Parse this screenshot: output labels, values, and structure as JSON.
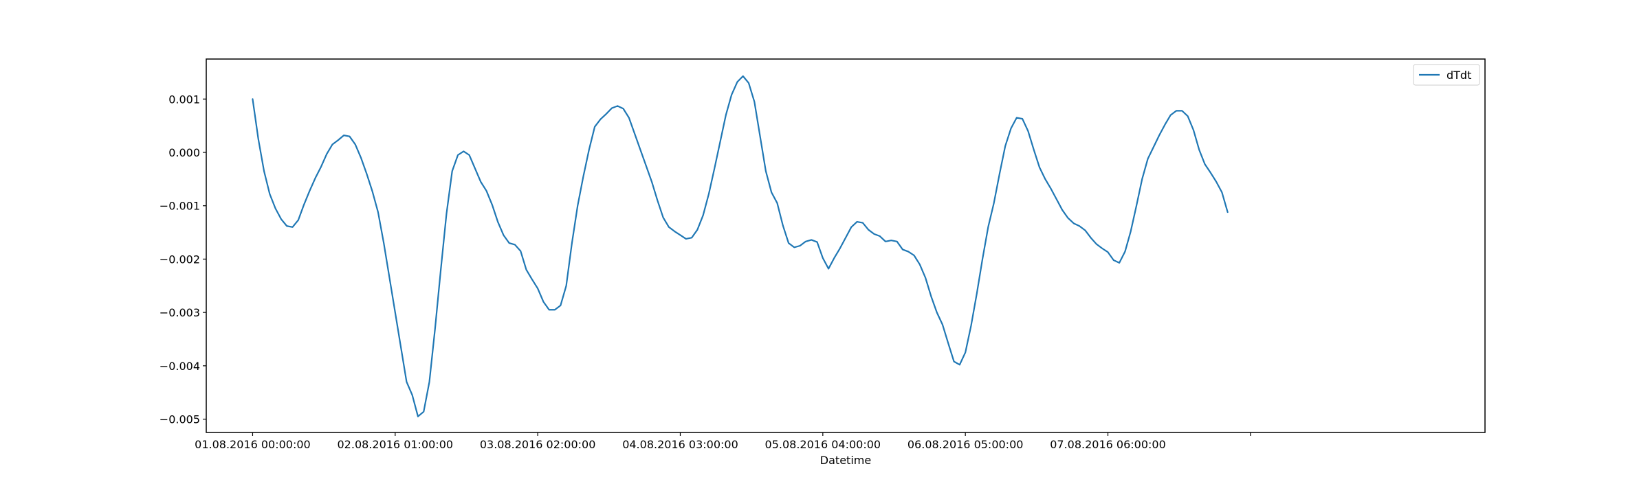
{
  "chart_data": {
    "type": "line",
    "xlabel": "Datetime",
    "ylabel": "",
    "ylim": [
      -0.00525,
      0.00175
    ],
    "xlim": [
      -8.133,
      216.133
    ],
    "grid": false,
    "legend_position": "top-right",
    "x_unit": "hours",
    "x_ticks": [
      {
        "value": 0,
        "label": "01.08.2016 00:00:00"
      },
      {
        "value": 25,
        "label": "02.08.2016 01:00:00"
      },
      {
        "value": 50,
        "label": "03.08.2016 02:00:00"
      },
      {
        "value": 75,
        "label": "04.08.2016 03:00:00"
      },
      {
        "value": 100,
        "label": "05.08.2016 04:00:00"
      },
      {
        "value": 125,
        "label": "06.08.2016 05:00:00"
      },
      {
        "value": 150,
        "label": "07.08.2016 06:00:00"
      },
      {
        "value": 175,
        "label": ""
      }
    ],
    "y_ticks": [
      {
        "value": 0.001,
        "label": "0.001"
      },
      {
        "value": 0.0,
        "label": "0.000"
      },
      {
        "value": -0.001,
        "label": "−0.001"
      },
      {
        "value": -0.002,
        "label": "−0.002"
      },
      {
        "value": -0.003,
        "label": "−0.003"
      },
      {
        "value": -0.004,
        "label": "−0.004"
      },
      {
        "value": -0.005,
        "label": "−0.005"
      }
    ],
    "series": [
      {
        "name": "dTdt",
        "color": "#1f77b4",
        "points": [
          [
            0,
            0.001
          ],
          [
            1,
            0.00025
          ],
          [
            2,
            -0.00035
          ],
          [
            3,
            -0.00078
          ],
          [
            4,
            -0.00105
          ],
          [
            5,
            -0.00125
          ],
          [
            6,
            -0.00138
          ],
          [
            7,
            -0.0014
          ],
          [
            8,
            -0.00127
          ],
          [
            9,
            -0.00098
          ],
          [
            10,
            -0.00072
          ],
          [
            11,
            -0.00048
          ],
          [
            12,
            -0.00027
          ],
          [
            13,
            -3e-05
          ],
          [
            14,
            0.00015
          ],
          [
            15,
            0.00023
          ],
          [
            16,
            0.00032
          ],
          [
            17,
            0.0003
          ],
          [
            18,
            0.00015
          ],
          [
            19,
            -0.0001
          ],
          [
            20,
            -0.0004
          ],
          [
            21,
            -0.00073
          ],
          [
            22,
            -0.00112
          ],
          [
            23,
            -0.0017
          ],
          [
            24,
            -0.00235
          ],
          [
            25,
            -0.003
          ],
          [
            26,
            -0.00365
          ],
          [
            27,
            -0.0043
          ],
          [
            28,
            -0.00455
          ],
          [
            29,
            -0.00495
          ],
          [
            30,
            -0.00486
          ],
          [
            31,
            -0.0043
          ],
          [
            32,
            -0.0033
          ],
          [
            33,
            -0.0022
          ],
          [
            34,
            -0.00115
          ],
          [
            35,
            -0.00035
          ],
          [
            36,
            -5e-05
          ],
          [
            37,
            2e-05
          ],
          [
            38,
            -5e-05
          ],
          [
            39,
            -0.0003
          ],
          [
            40,
            -0.00055
          ],
          [
            41,
            -0.00072
          ],
          [
            42,
            -0.00098
          ],
          [
            43,
            -0.0013
          ],
          [
            44,
            -0.00155
          ],
          [
            45,
            -0.0017
          ],
          [
            46,
            -0.00173
          ],
          [
            47,
            -0.00185
          ],
          [
            48,
            -0.0022
          ],
          [
            49,
            -0.00238
          ],
          [
            50,
            -0.00255
          ],
          [
            51,
            -0.0028
          ],
          [
            52,
            -0.00295
          ],
          [
            53,
            -0.00295
          ],
          [
            54,
            -0.00287
          ],
          [
            55,
            -0.0025
          ],
          [
            56,
            -0.0017
          ],
          [
            57,
            -0.001
          ],
          [
            58,
            -0.00045
          ],
          [
            59,
            5e-05
          ],
          [
            60,
            0.00048
          ],
          [
            61,
            0.00062
          ],
          [
            62,
            0.00072
          ],
          [
            63,
            0.00083
          ],
          [
            64,
            0.00087
          ],
          [
            65,
            0.00082
          ],
          [
            66,
            0.00065
          ],
          [
            67,
            0.00035
          ],
          [
            68,
            5e-05
          ],
          [
            69,
            -0.00025
          ],
          [
            70,
            -0.00055
          ],
          [
            71,
            -0.0009
          ],
          [
            72,
            -0.00122
          ],
          [
            73,
            -0.0014
          ],
          [
            74,
            -0.00148
          ],
          [
            75,
            -0.00155
          ],
          [
            76,
            -0.00162
          ],
          [
            77,
            -0.0016
          ],
          [
            78,
            -0.00145
          ],
          [
            79,
            -0.00118
          ],
          [
            80,
            -0.00078
          ],
          [
            81,
            -0.0003
          ],
          [
            82,
            0.0002
          ],
          [
            83,
            0.0007
          ],
          [
            84,
            0.00108
          ],
          [
            85,
            0.00132
          ],
          [
            86,
            0.00143
          ],
          [
            87,
            0.0013
          ],
          [
            88,
            0.00095
          ],
          [
            89,
            0.0003
          ],
          [
            90,
            -0.00035
          ],
          [
            91,
            -0.00075
          ],
          [
            92,
            -0.00095
          ],
          [
            93,
            -0.00137
          ],
          [
            94,
            -0.0017
          ],
          [
            95,
            -0.00178
          ],
          [
            96,
            -0.00175
          ],
          [
            97,
            -0.00167
          ],
          [
            98,
            -0.00164
          ],
          [
            99,
            -0.00168
          ],
          [
            100,
            -0.00198
          ],
          [
            101,
            -0.00218
          ],
          [
            102,
            -0.00198
          ],
          [
            103,
            -0.0018
          ],
          [
            104,
            -0.0016
          ],
          [
            105,
            -0.0014
          ],
          [
            106,
            -0.0013
          ],
          [
            107,
            -0.00132
          ],
          [
            108,
            -0.00145
          ],
          [
            109,
            -0.00153
          ],
          [
            110,
            -0.00157
          ],
          [
            111,
            -0.00167
          ],
          [
            112,
            -0.00165
          ],
          [
            113,
            -0.00167
          ],
          [
            114,
            -0.00182
          ],
          [
            115,
            -0.00186
          ],
          [
            116,
            -0.00193
          ],
          [
            117,
            -0.0021
          ],
          [
            118,
            -0.00235
          ],
          [
            119,
            -0.0027
          ],
          [
            120,
            -0.003
          ],
          [
            121,
            -0.00323
          ],
          [
            122,
            -0.00358
          ],
          [
            123,
            -0.00392
          ],
          [
            124,
            -0.00398
          ],
          [
            125,
            -0.00375
          ],
          [
            126,
            -0.00325
          ],
          [
            127,
            -0.00265
          ],
          [
            128,
            -0.002
          ],
          [
            129,
            -0.0014
          ],
          [
            130,
            -0.00095
          ],
          [
            131,
            -0.0004
          ],
          [
            132,
            0.00012
          ],
          [
            133,
            0.00045
          ],
          [
            134,
            0.00065
          ],
          [
            135,
            0.00063
          ],
          [
            136,
            0.0004
          ],
          [
            137,
            5e-05
          ],
          [
            138,
            -0.00028
          ],
          [
            139,
            -0.0005
          ],
          [
            140,
            -0.00068
          ],
          [
            141,
            -0.00088
          ],
          [
            142,
            -0.00108
          ],
          [
            143,
            -0.00123
          ],
          [
            144,
            -0.00133
          ],
          [
            145,
            -0.00138
          ],
          [
            146,
            -0.00146
          ],
          [
            147,
            -0.0016
          ],
          [
            148,
            -0.00172
          ],
          [
            149,
            -0.0018
          ],
          [
            150,
            -0.00187
          ],
          [
            151,
            -0.00202
          ],
          [
            152,
            -0.00207
          ],
          [
            153,
            -0.00186
          ],
          [
            154,
            -0.00148
          ],
          [
            155,
            -0.001
          ],
          [
            156,
            -0.0005
          ],
          [
            157,
            -0.00012
          ],
          [
            158,
            0.0001
          ],
          [
            159,
            0.00032
          ],
          [
            160,
            0.00052
          ],
          [
            161,
            0.0007
          ],
          [
            162,
            0.00078
          ],
          [
            163,
            0.00078
          ],
          [
            164,
            0.00068
          ],
          [
            165,
            0.00042
          ],
          [
            166,
            5e-05
          ],
          [
            167,
            -0.00022
          ],
          [
            168,
            -0.00038
          ],
          [
            169,
            -0.00055
          ],
          [
            170,
            -0.00075
          ],
          [
            171,
            -0.00112
          ]
        ]
      }
    ]
  }
}
